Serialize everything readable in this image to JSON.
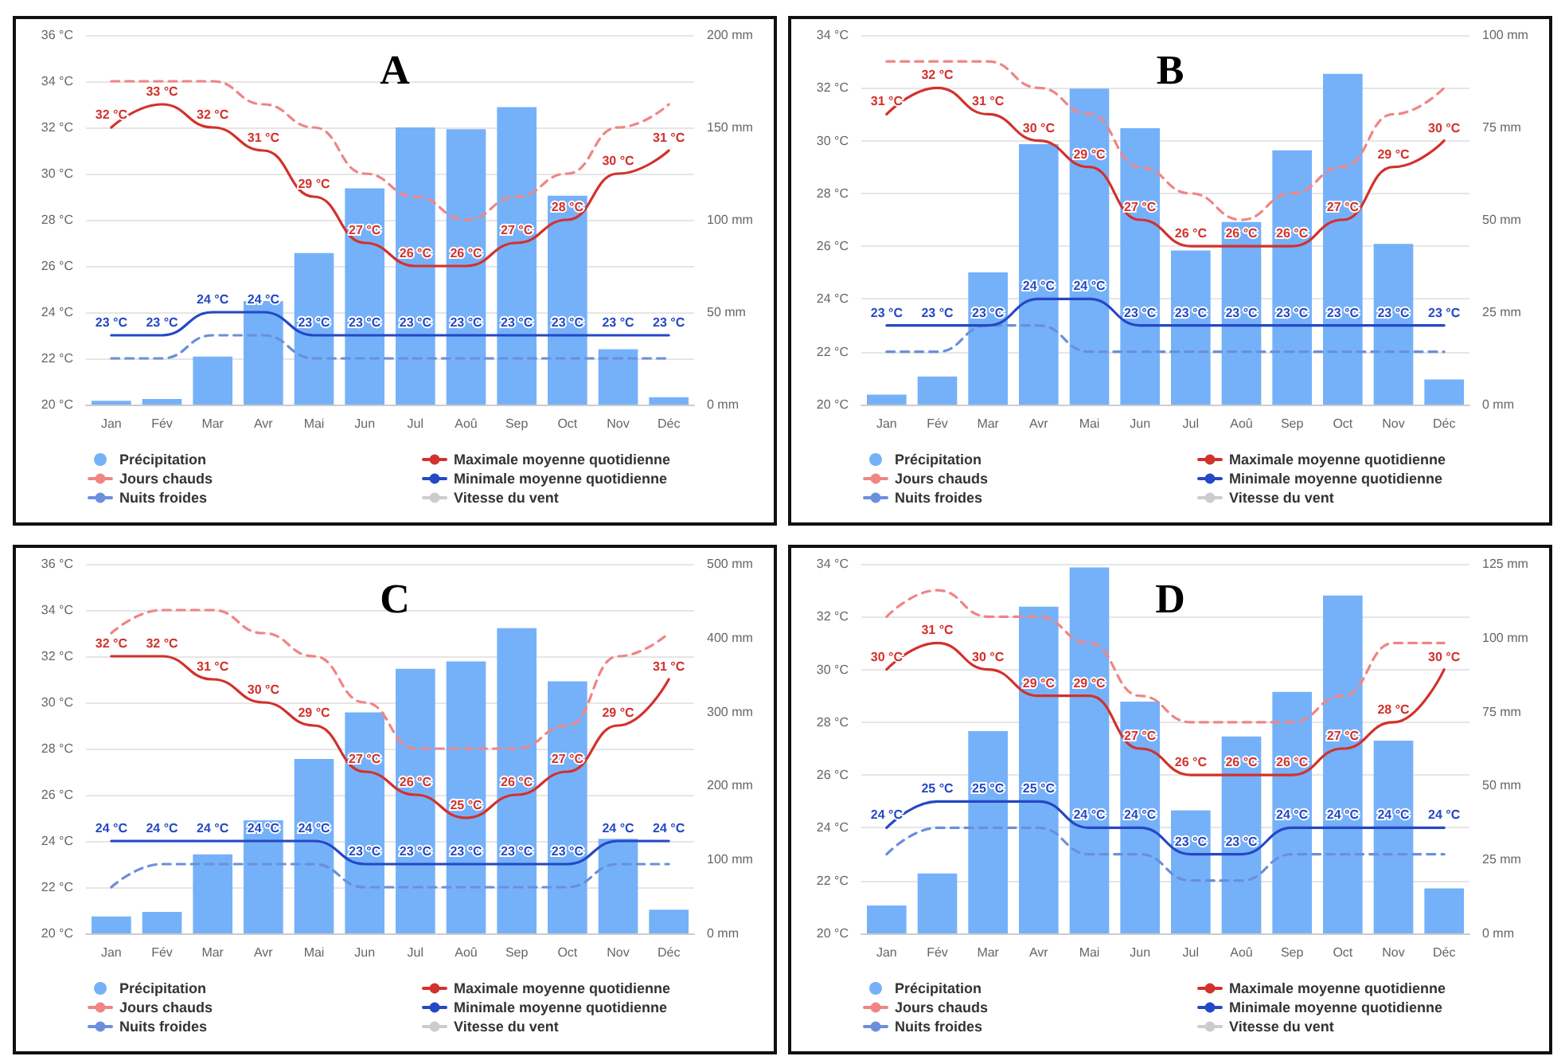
{
  "chart_data": [
    {
      "type": "bar",
      "title": "A",
      "categories": [
        "Jan",
        "Fév",
        "Mar",
        "Avr",
        "Mai",
        "Jun",
        "Jul",
        "Aoû",
        "Sep",
        "Oct",
        "Nov",
        "Déc"
      ],
      "ylim": [
        20,
        36
      ],
      "yticks": [
        {
          "value": 20,
          "label": "20 °C"
        },
        {
          "value": 22,
          "label": "22 °C"
        },
        {
          "value": 24,
          "label": "24 °C"
        },
        {
          "value": 26,
          "label": "26 °C"
        },
        {
          "value": 28,
          "label": "28 °C"
        },
        {
          "value": 30,
          "label": "30 °C"
        },
        {
          "value": 32,
          "label": "32 °C"
        },
        {
          "value": 34,
          "label": "34 °C"
        },
        {
          "value": 36,
          "label": "36 °C"
        }
      ],
      "y2lim": [
        0,
        200
      ],
      "y2ticks": [
        {
          "value": 0,
          "label": "0 mm"
        },
        {
          "value": 50,
          "label": "50 mm"
        },
        {
          "value": 100,
          "label": "100 mm"
        },
        {
          "value": 150,
          "label": "150 mm"
        },
        {
          "value": 200,
          "label": "200 mm"
        }
      ],
      "grid": "y",
      "legend": "bottom",
      "marker": "none",
      "series": [
        {
          "name": "Précipitation",
          "axis": "y2",
          "color": "#75b1f9",
          "values": [
            2,
            3,
            26,
            56,
            82,
            117,
            150,
            149,
            161,
            113,
            30,
            4
          ]
        },
        {
          "name": "Jours chauds",
          "type": "line",
          "line_style": "dashed",
          "color": "#f08585",
          "values": [
            34,
            34,
            34,
            33,
            32,
            30,
            29,
            28,
            29,
            30,
            32,
            33
          ]
        },
        {
          "name": "Nuits froides",
          "type": "line",
          "line_style": "dashed",
          "color": "#6a8fdc",
          "values": [
            22,
            22,
            23,
            23,
            22,
            22,
            22,
            22,
            22,
            22,
            22,
            22
          ]
        },
        {
          "name": "Maximale moyenne quotidienne",
          "type": "line",
          "line_style": "solid",
          "color": "#d3312c",
          "values": [
            32,
            33,
            32,
            31,
            29,
            27,
            26,
            26,
            27,
            28,
            30,
            31
          ],
          "value_labels": [
            "32 °C",
            "33 °C",
            "32 °C",
            "31 °C",
            "29 °C",
            "27 °C",
            "26 °C",
            "26 °C",
            "27 °C",
            "28 °C",
            "30 °C",
            "31 °C"
          ]
        },
        {
          "name": "Minimale moyenne quotidienne",
          "type": "line",
          "line_style": "solid",
          "color": "#2548c5",
          "values": [
            23,
            23,
            24,
            24,
            23,
            23,
            23,
            23,
            23,
            23,
            23,
            23
          ],
          "value_labels": [
            "23 °C",
            "23 °C",
            "24 °C",
            "24 °C",
            "23 °C",
            "23 °C",
            "23 °C",
            "23 °C",
            "23 °C",
            "23 °C",
            "23 °C",
            "23 °C"
          ]
        },
        {
          "name": "Vitesse du vent",
          "type": "line",
          "line_style": "solid",
          "color": "#cccccc",
          "values": [
            null,
            null,
            null,
            null,
            null,
            null,
            null,
            null,
            null,
            null,
            null,
            null
          ]
        }
      ]
    },
    {
      "type": "bar",
      "title": "B",
      "categories": [
        "Jan",
        "Fév",
        "Mar",
        "Avr",
        "Mai",
        "Jun",
        "Jul",
        "Aoû",
        "Sep",
        "Oct",
        "Nov",
        "Déc"
      ],
      "ylim": [
        20,
        34
      ],
      "yticks": [
        {
          "value": 20,
          "label": "20 °C"
        },
        {
          "value": 22,
          "label": "22 °C"
        },
        {
          "value": 24,
          "label": "24 °C"
        },
        {
          "value": 26,
          "label": "26 °C"
        },
        {
          "value": 28,
          "label": "28 °C"
        },
        {
          "value": 30,
          "label": "30 °C"
        },
        {
          "value": 32,
          "label": "32 °C"
        },
        {
          "value": 34,
          "label": "34 °C"
        }
      ],
      "y2lim": [
        0,
        100
      ],
      "y2ticks": [
        {
          "value": 0,
          "label": "0 mm"
        },
        {
          "value": 25,
          "label": "25 mm"
        },
        {
          "value": 50,
          "label": "50 mm"
        },
        {
          "value": 75,
          "label": "75 mm"
        },
        {
          "value": 100,
          "label": "100 mm"
        }
      ],
      "grid": "y",
      "legend": "bottom",
      "marker": "none",
      "series": [
        {
          "name": "Précipitation",
          "axis": "y2",
          "color": "#75b1f9",
          "values": [
            2.7,
            7.6,
            35.8,
            70.5,
            85.5,
            74.8,
            41.7,
            49.4,
            68.8,
            89.5,
            43.5,
            6.8
          ]
        },
        {
          "name": "Jours chauds",
          "type": "line",
          "line_style": "dashed",
          "color": "#f08585",
          "values": [
            33,
            33,
            33,
            32,
            31,
            29,
            28,
            27,
            28,
            29,
            31,
            32
          ]
        },
        {
          "name": "Nuits froides",
          "type": "line",
          "line_style": "dashed",
          "color": "#6a8fdc",
          "values": [
            22,
            22,
            23,
            23,
            22,
            22,
            22,
            22,
            22,
            22,
            22,
            22
          ]
        },
        {
          "name": "Maximale moyenne quotidienne",
          "type": "line",
          "line_style": "solid",
          "color": "#d3312c",
          "values": [
            31,
            32,
            31,
            30,
            29,
            27,
            26,
            26,
            26,
            27,
            29,
            30
          ],
          "value_labels": [
            "31 °C",
            "32 °C",
            "31 °C",
            "30 °C",
            "29 °C",
            "27 °C",
            "26 °C",
            "26 °C",
            "26 °C",
            "27 °C",
            "29 °C",
            "30 °C"
          ]
        },
        {
          "name": "Minimale moyenne quotidienne",
          "type": "line",
          "line_style": "solid",
          "color": "#2548c5",
          "values": [
            23,
            23,
            23,
            24,
            24,
            23,
            23,
            23,
            23,
            23,
            23,
            23
          ],
          "value_labels": [
            "23 °C",
            "23 °C",
            "23 °C",
            "24 °C",
            "24 °C",
            "23 °C",
            "23 °C",
            "23 °C",
            "23 °C",
            "23 °C",
            "23 °C",
            "23 °C"
          ]
        },
        {
          "name": "Vitesse du vent",
          "type": "line",
          "line_style": "solid",
          "color": "#cccccc",
          "values": [
            null,
            null,
            null,
            null,
            null,
            null,
            null,
            null,
            null,
            null,
            null,
            null
          ]
        }
      ]
    },
    {
      "type": "bar",
      "title": "C",
      "categories": [
        "Jan",
        "Fév",
        "Mar",
        "Avr",
        "Mai",
        "Jun",
        "Jul",
        "Aoû",
        "Sep",
        "Oct",
        "Nov",
        "Déc"
      ],
      "ylim": [
        20,
        36
      ],
      "yticks": [
        {
          "value": 20,
          "label": "20 °C"
        },
        {
          "value": 22,
          "label": "22 °C"
        },
        {
          "value": 24,
          "label": "24 °C"
        },
        {
          "value": 26,
          "label": "26 °C"
        },
        {
          "value": 28,
          "label": "28 °C"
        },
        {
          "value": 30,
          "label": "30 °C"
        },
        {
          "value": 32,
          "label": "32 °C"
        },
        {
          "value": 34,
          "label": "34 °C"
        },
        {
          "value": 36,
          "label": "36 °C"
        }
      ],
      "y2lim": [
        0,
        500
      ],
      "y2ticks": [
        {
          "value": 0,
          "label": "0 mm"
        },
        {
          "value": 100,
          "label": "100 mm"
        },
        {
          "value": 200,
          "label": "200 mm"
        },
        {
          "value": 300,
          "label": "300 mm"
        },
        {
          "value": 400,
          "label": "400 mm"
        },
        {
          "value": 500,
          "label": "500 mm"
        }
      ],
      "grid": "y",
      "legend": "bottom",
      "marker": "none",
      "series": [
        {
          "name": "Précipitation",
          "axis": "y2",
          "color": "#75b1f9",
          "values": [
            23,
            29,
            107,
            153,
            236,
            299,
            358,
            368,
            413,
            341,
            128,
            32
          ]
        },
        {
          "name": "Jours chauds",
          "type": "line",
          "line_style": "dashed",
          "color": "#f08585",
          "values": [
            33,
            34,
            34,
            33,
            32,
            30,
            28,
            28,
            28,
            29,
            32,
            33
          ]
        },
        {
          "name": "Nuits froides",
          "type": "line",
          "line_style": "dashed",
          "color": "#6a8fdc",
          "values": [
            22,
            23,
            23,
            23,
            23,
            22,
            22,
            22,
            22,
            22,
            23,
            23
          ]
        },
        {
          "name": "Maximale moyenne quotidienne",
          "type": "line",
          "line_style": "solid",
          "color": "#d3312c",
          "values": [
            32,
            32,
            31,
            30,
            29,
            27,
            26,
            25,
            26,
            27,
            29,
            31
          ],
          "value_labels": [
            "32 °C",
            "32 °C",
            "31 °C",
            "30 °C",
            "29 °C",
            "27 °C",
            "26 °C",
            "25 °C",
            "26 °C",
            "27 °C",
            "29 °C",
            "31 °C"
          ]
        },
        {
          "name": "Minimale moyenne quotidienne",
          "type": "line",
          "line_style": "solid",
          "color": "#2548c5",
          "values": [
            24,
            24,
            24,
            24,
            24,
            23,
            23,
            23,
            23,
            23,
            24,
            24
          ],
          "value_labels": [
            "24 °C",
            "24 °C",
            "24 °C",
            "24 °C",
            "24 °C",
            "23 °C",
            "23 °C",
            "23 °C",
            "23 °C",
            "23 °C",
            "24 °C",
            "24 °C"
          ]
        },
        {
          "name": "Vitesse du vent",
          "type": "line",
          "line_style": "solid",
          "color": "#cccccc",
          "values": [
            null,
            null,
            null,
            null,
            null,
            null,
            null,
            null,
            null,
            null,
            null,
            null
          ]
        }
      ]
    },
    {
      "type": "bar",
      "title": "D",
      "categories": [
        "Jan",
        "Fév",
        "Mar",
        "Avr",
        "Mai",
        "Jun",
        "Jul",
        "Aoû",
        "Sep",
        "Oct",
        "Nov",
        "Déc"
      ],
      "ylim": [
        20,
        34
      ],
      "yticks": [
        {
          "value": 20,
          "label": "20 °C"
        },
        {
          "value": 22,
          "label": "22 °C"
        },
        {
          "value": 24,
          "label": "24 °C"
        },
        {
          "value": 26,
          "label": "26 °C"
        },
        {
          "value": 28,
          "label": "28 °C"
        },
        {
          "value": 30,
          "label": "30 °C"
        },
        {
          "value": 32,
          "label": "32 °C"
        },
        {
          "value": 34,
          "label": "34 °C"
        }
      ],
      "y2lim": [
        0,
        125
      ],
      "y2ticks": [
        {
          "value": 0,
          "label": "0 mm"
        },
        {
          "value": 25,
          "label": "25 mm"
        },
        {
          "value": 50,
          "label": "50 mm"
        },
        {
          "value": 75,
          "label": "75 mm"
        },
        {
          "value": 100,
          "label": "100 mm"
        },
        {
          "value": 125,
          "label": "125 mm"
        }
      ],
      "grid": "y",
      "legend": "bottom",
      "marker": "none",
      "series": [
        {
          "name": "Précipitation",
          "axis": "y2",
          "color": "#75b1f9",
          "values": [
            9.4,
            20.3,
            68.4,
            110.5,
            123.8,
            78.4,
            41.6,
            66.6,
            81.7,
            114.3,
            65.2,
            15.2
          ]
        },
        {
          "name": "Jours chauds",
          "type": "line",
          "line_style": "dashed",
          "color": "#f08585",
          "values": [
            32,
            33,
            32,
            32,
            31,
            29,
            28,
            28,
            28,
            29,
            31,
            31
          ]
        },
        {
          "name": "Nuits froides",
          "type": "line",
          "line_style": "dashed",
          "color": "#6a8fdc",
          "values": [
            23,
            24,
            24,
            24,
            23,
            23,
            22,
            22,
            23,
            23,
            23,
            23
          ]
        },
        {
          "name": "Maximale moyenne quotidienne",
          "type": "line",
          "line_style": "solid",
          "color": "#d3312c",
          "values": [
            30,
            31,
            30,
            29,
            29,
            27,
            26,
            26,
            26,
            27,
            28,
            30
          ],
          "value_labels": [
            "30 °C",
            "31 °C",
            "30 °C",
            "29 °C",
            "29 °C",
            "27 °C",
            "26 °C",
            "26 °C",
            "26 °C",
            "27 °C",
            "28 °C",
            "30 °C"
          ]
        },
        {
          "name": "Minimale moyenne quotidienne",
          "type": "line",
          "line_style": "solid",
          "color": "#2548c5",
          "values": [
            24,
            25,
            25,
            25,
            24,
            24,
            23,
            23,
            24,
            24,
            24,
            24
          ],
          "value_labels": [
            "24 °C",
            "25 °C",
            "25 °C",
            "25 °C",
            "24 °C",
            "24 °C",
            "23 °C",
            "23 °C",
            "24 °C",
            "24 °C",
            "24 °C",
            "24 °C"
          ]
        },
        {
          "name": "Vitesse du vent",
          "type": "line",
          "line_style": "solid",
          "color": "#cccccc",
          "values": [
            null,
            null,
            null,
            null,
            null,
            null,
            null,
            null,
            null,
            null,
            null,
            null
          ]
        }
      ]
    }
  ]
}
